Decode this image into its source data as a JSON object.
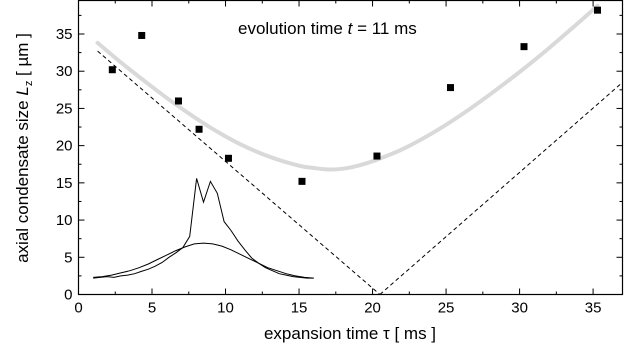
{
  "chart_data": {
    "type": "scatter",
    "title": "",
    "xlabel": "expansion time τ [ ms ]",
    "ylabel": "axial condensate size L_z [ µm ]",
    "xlim": [
      0,
      37
    ],
    "ylim": [
      0,
      39.5
    ],
    "xticks": [
      "0",
      "5",
      "10",
      "15",
      "20",
      "25",
      "30",
      "35"
    ],
    "yticks": [
      "0",
      "5",
      "10",
      "15",
      "20",
      "25",
      "30",
      "35"
    ],
    "annotation": {
      "prefix": "evolution time ",
      "variable": "t",
      "suffix": " = 11 ms"
    },
    "series": [
      {
        "marker": "square",
        "color": "#000000",
        "x": [
          2.3,
          4.3,
          6.8,
          8.2,
          10.2,
          15.2,
          20.3,
          25.3,
          30.3,
          35.3
        ],
        "y": [
          30.2,
          34.8,
          26.0,
          22.2,
          18.3,
          15.2,
          18.6,
          27.8,
          33.3,
          38.2
        ]
      },
      {
        "style": "smooth-curve",
        "color": "#d9d9d9",
        "x": [
          1.3,
          3,
          5,
          7,
          9,
          11,
          13,
          15,
          16,
          17,
          18,
          19,
          20,
          22,
          24,
          26,
          28,
          30,
          32,
          34,
          35.3
        ],
        "y": [
          33.8,
          31.0,
          27.9,
          25.0,
          22.4,
          20.2,
          18.5,
          17.3,
          17.0,
          16.8,
          16.9,
          17.3,
          17.9,
          19.5,
          21.6,
          24.1,
          26.9,
          29.9,
          33.1,
          36.5,
          38.8
        ]
      },
      {
        "style": "dashed",
        "color": "#000000",
        "x": [
          1.3,
          20.5,
          37
        ],
        "y": [
          32.7,
          0,
          28.5
        ]
      }
    ],
    "inset_profile": {
      "x_range": [
        1,
        16
      ],
      "data": [
        2.2,
        2.3,
        2.4,
        2.3,
        2.5,
        2.6,
        2.8,
        3.1,
        3.4,
        3.8,
        4.3,
        5.0,
        5.6,
        6.3,
        7.8,
        15.6,
        12.4,
        15.2,
        13.6,
        9.8,
        8.6,
        7.2,
        6.0,
        4.9,
        4.2,
        3.6,
        3.2,
        2.8,
        2.6,
        2.4,
        2.3,
        2.2,
        2.2
      ],
      "fit": [
        2.3,
        2.4,
        2.6,
        2.9,
        3.2,
        3.6,
        4.1,
        4.7,
        5.3,
        5.9,
        6.4,
        6.8,
        6.9,
        6.8,
        6.5,
        6.0,
        5.4,
        4.8,
        4.2,
        3.6,
        3.2,
        2.8,
        2.5,
        2.3,
        2.2
      ]
    }
  }
}
